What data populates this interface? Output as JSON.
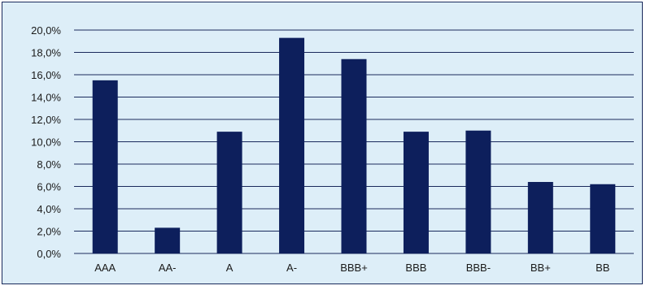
{
  "chart_data": {
    "type": "bar",
    "title": "",
    "xlabel": "",
    "ylabel": "",
    "categories": [
      "AAA",
      "AA-",
      "A",
      "A-",
      "BBB+",
      "BBB",
      "BBB-",
      "BB+",
      "BB"
    ],
    "values": [
      15.5,
      2.3,
      10.9,
      19.3,
      17.4,
      10.9,
      11.0,
      6.4,
      6.2
    ],
    "ylim": [
      0,
      20
    ],
    "yticks": [
      "0,0%",
      "2,0%",
      "4,0%",
      "6,0%",
      "8,0%",
      "10,0%",
      "12,0%",
      "14,0%",
      "16,0%",
      "18,0%",
      "20,0%"
    ],
    "grid": true,
    "legend": "none",
    "colors": {
      "bar": "#0d1f5c",
      "background": "#ddeef8",
      "grid": "#1a2a5c"
    }
  }
}
